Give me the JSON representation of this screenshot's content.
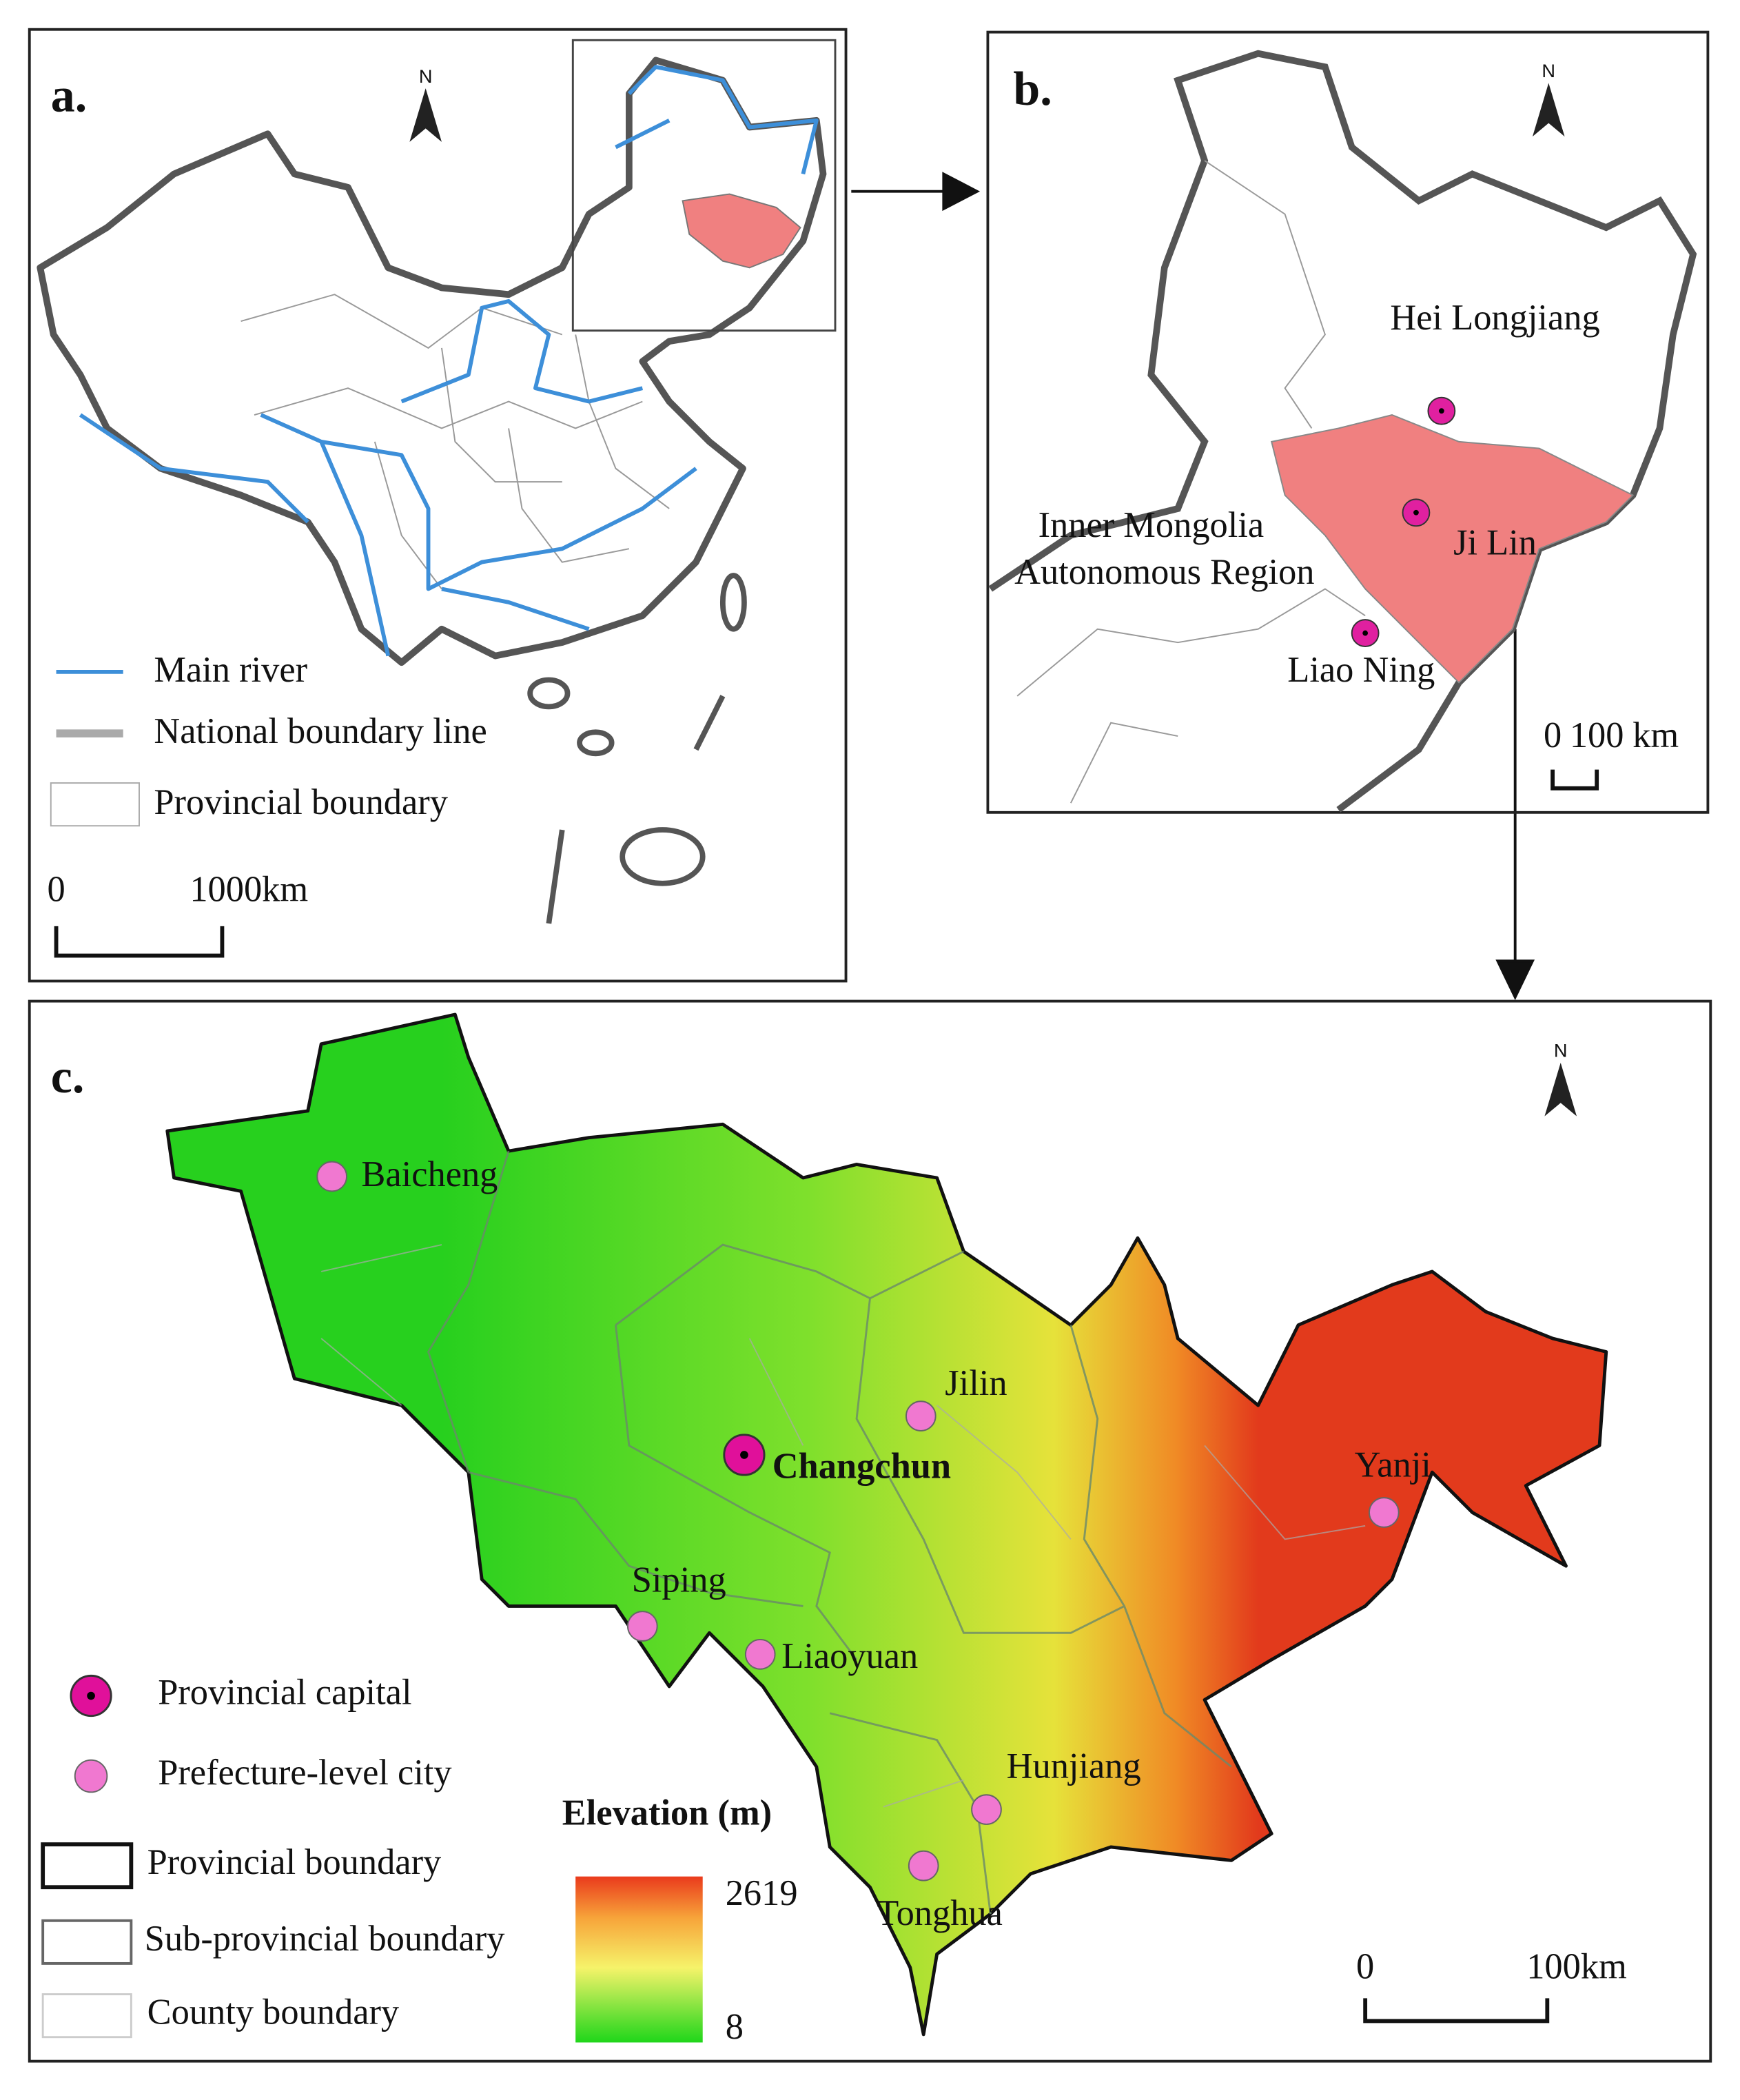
{
  "panel_a": {
    "label": "a.",
    "north": "N",
    "legend": [
      "Main river",
      "National boundary line",
      "Provincial boundary"
    ],
    "scale_bar": [
      "0",
      "1000km"
    ]
  },
  "panel_b": {
    "label": "b.",
    "north": "N",
    "regions": [
      "Hei Longjiang",
      "Inner Mongolia",
      "Autonomous Region",
      "Ji Lin",
      "Liao Ning"
    ],
    "scale_bar": [
      "0",
      "100",
      "km"
    ]
  },
  "panel_c": {
    "label": "c.",
    "north": "N",
    "capital": "Changchun",
    "cities": [
      "Baicheng",
      "Jilin",
      "Yanji",
      "Siping",
      "Liaoyuan",
      "Hunjiang",
      "Tonghua"
    ],
    "legend": [
      "Provincial capital",
      "Prefecture-level city",
      "Provincial boundary",
      "Sub-provincial boundary",
      "County boundary"
    ],
    "elevation_title": "Elevation (m)",
    "elevation_max": 2619,
    "elevation_min": 8,
    "scale_bar": [
      "0",
      "100km"
    ]
  }
}
